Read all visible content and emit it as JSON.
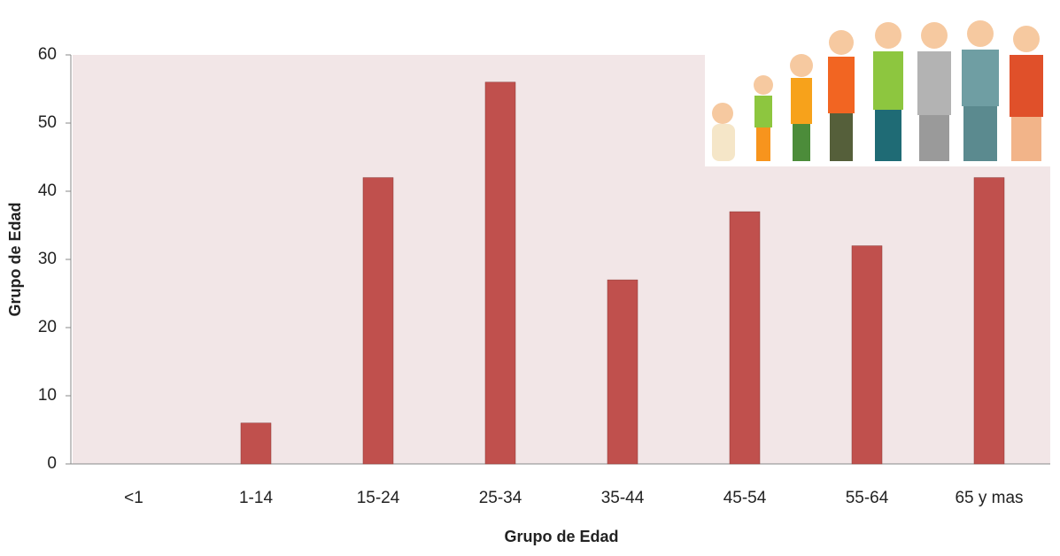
{
  "chart_data": {
    "type": "bar",
    "x_label": "Grupo de Edad",
    "y_label": "Grupo de Edad",
    "categories": [
      "<1",
      "1-14",
      "15-24",
      "25-34",
      "35-44",
      "45-54",
      "55-64",
      "65 y mas"
    ],
    "values": [
      0,
      6,
      42,
      56,
      27,
      37,
      32,
      42
    ],
    "color": "#c0504d",
    "ylim": [
      0,
      60
    ],
    "yticks": [
      0,
      10,
      20,
      30,
      40,
      50,
      60
    ],
    "grid": false
  }
}
